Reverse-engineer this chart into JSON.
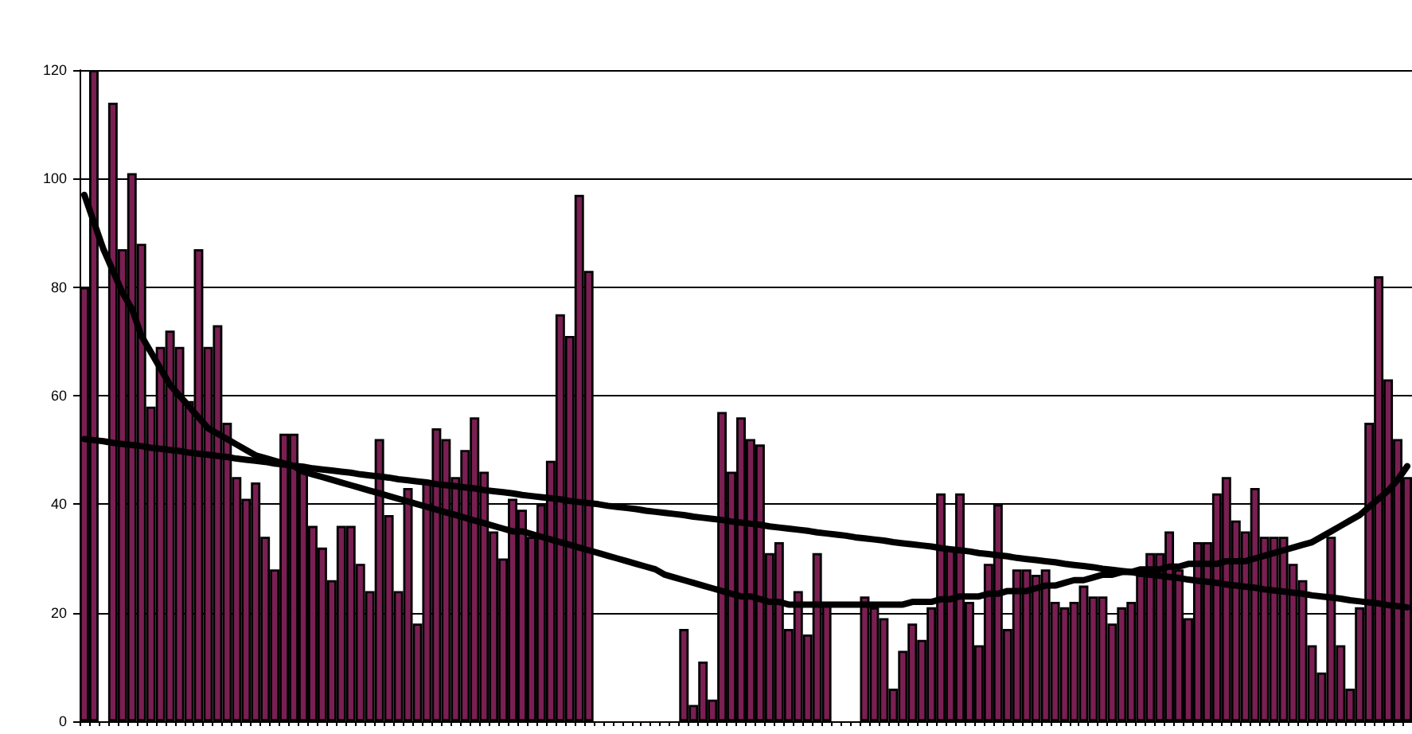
{
  "chart_data": {
    "type": "bar",
    "categories": [
      null,
      null,
      null,
      null,
      null,
      null,
      null,
      null,
      null,
      null,
      null,
      null,
      null,
      null,
      null,
      null,
      null,
      null,
      null,
      null,
      null,
      null,
      null,
      null,
      null,
      null,
      null,
      null,
      null,
      null,
      null,
      null,
      null,
      null,
      null,
      null,
      null,
      null,
      null,
      null,
      null,
      null,
      null,
      null,
      null,
      null,
      null,
      null,
      null,
      null,
      null,
      null,
      null,
      null,
      null,
      null,
      null,
      null,
      null,
      null,
      null,
      null,
      null,
      null,
      null,
      null,
      null,
      null,
      null,
      null,
      null,
      null,
      null,
      null,
      null,
      null,
      null,
      null,
      null,
      null,
      null,
      null,
      null,
      null,
      null,
      null,
      null,
      null,
      null,
      null,
      null,
      null,
      null,
      null,
      null,
      null,
      null,
      null,
      null,
      null,
      null,
      null,
      null,
      null,
      null,
      null,
      null,
      null,
      null,
      null,
      null,
      null,
      null,
      null,
      null,
      null,
      null,
      null,
      null,
      null,
      null,
      null,
      null,
      null,
      null,
      null,
      null,
      null,
      null,
      null,
      null,
      null,
      null,
      null,
      null,
      null,
      null,
      null,
      null,
      null
    ],
    "series": [
      {
        "color": "#7a1f52",
        "values": [
          80,
          120,
          null,
          114,
          87,
          101,
          88,
          58,
          69,
          72,
          69,
          59,
          87,
          69,
          73,
          55,
          45,
          41,
          44,
          34,
          28,
          53,
          53,
          47,
          36,
          32,
          26,
          36,
          36,
          29,
          24,
          52,
          38,
          24,
          43,
          18,
          44,
          54,
          52,
          45,
          50,
          56,
          46,
          35,
          30,
          41,
          39,
          34,
          40,
          48,
          75,
          71,
          97,
          83,
          null,
          null,
          null,
          null,
          null,
          null,
          null,
          null,
          null,
          17,
          3,
          11,
          4,
          57,
          46,
          56,
          52,
          51,
          31,
          33,
          17,
          24,
          16,
          31,
          22,
          null,
          null,
          null,
          23,
          21,
          19,
          6,
          13,
          18,
          15,
          21,
          42,
          32,
          42,
          22,
          14,
          29,
          40,
          17,
          28,
          28,
          27,
          28,
          22,
          21,
          22,
          25,
          23,
          23,
          18,
          21,
          22,
          27,
          31,
          31,
          35,
          28,
          19,
          33,
          33,
          42,
          45,
          37,
          35,
          43,
          34,
          34,
          34,
          29,
          26,
          14,
          9,
          34,
          14,
          6,
          21,
          55,
          82,
          63,
          52,
          45
        ]
      },
      {
        "type": "line",
        "color": "#000000",
        "values": [
          52.0,
          51.8,
          51.6,
          51.3,
          51.1,
          50.9,
          50.7,
          50.4,
          50.2,
          50.0,
          49.8,
          49.5,
          49.3,
          49.1,
          48.9,
          48.7,
          48.4,
          48.2,
          48.0,
          47.8,
          47.5,
          47.3,
          47.1,
          46.9,
          46.6,
          46.4,
          46.2,
          46.0,
          45.8,
          45.5,
          45.3,
          45.1,
          44.9,
          44.6,
          44.4,
          44.2,
          44.0,
          43.7,
          43.5,
          43.3,
          43.1,
          42.9,
          42.6,
          42.4,
          42.2,
          42.0,
          41.7,
          41.5,
          41.3,
          41.1,
          40.9,
          40.6,
          40.4,
          40.2,
          40.0,
          39.7,
          39.5,
          39.3,
          39.1,
          38.8,
          38.6,
          38.4,
          38.2,
          38.0,
          37.7,
          37.5,
          37.3,
          37.1,
          36.8,
          36.6,
          36.4,
          36.2,
          35.9,
          35.7,
          35.5,
          35.3,
          35.1,
          34.8,
          34.6,
          34.4,
          34.2,
          33.9,
          33.7,
          33.5,
          33.3,
          33.0,
          32.8,
          32.6,
          32.4,
          32.2,
          31.9,
          31.7,
          31.5,
          31.3,
          31.0,
          30.8,
          30.6,
          30.4,
          30.1,
          29.9,
          29.7,
          29.5,
          29.3,
          29.0,
          28.8,
          28.6,
          28.4,
          28.1,
          27.9,
          27.7,
          27.5,
          27.2,
          27.0,
          26.8,
          26.6,
          26.4,
          26.1,
          25.9,
          25.7,
          25.5,
          25.2,
          25.0,
          24.8,
          24.6,
          24.3,
          24.1,
          23.9,
          23.7,
          23.5,
          23.2,
          23.0,
          22.8,
          22.6,
          22.3,
          22.1,
          21.9,
          21.7,
          21.4,
          21.2,
          21.0
        ]
      },
      {
        "type": "line",
        "color": "#000000",
        "values": [
          97,
          92,
          87,
          83,
          79,
          76,
          71,
          68,
          65,
          62,
          60,
          58,
          56,
          54,
          53,
          52,
          51,
          50,
          49,
          48.5,
          48,
          47.5,
          47,
          46,
          45.5,
          45,
          44.5,
          44,
          43.5,
          43,
          42.5,
          42,
          41.5,
          41,
          40.5,
          40,
          39.5,
          39,
          38.5,
          38,
          37.5,
          37,
          36.5,
          36,
          35.5,
          35,
          35,
          34.5,
          34,
          33.5,
          33,
          32.5,
          32,
          31.5,
          31,
          30.5,
          30,
          29.5,
          29,
          28.5,
          28,
          27,
          26.5,
          26,
          25.5,
          25,
          24.5,
          24,
          23.5,
          23,
          23,
          22.5,
          22,
          22,
          21.5,
          21.5,
          21.5,
          21.5,
          21.5,
          21.5,
          21.5,
          21.5,
          21.5,
          21.5,
          21.5,
          21.5,
          21.5,
          22,
          22,
          22,
          22.5,
          22.5,
          23,
          23,
          23,
          23.5,
          23.5,
          24,
          24,
          24,
          24.5,
          25,
          25,
          25.5,
          26,
          26,
          26.5,
          27,
          27,
          27.5,
          27.5,
          28,
          28,
          28,
          28.5,
          28.5,
          29,
          29,
          29,
          29,
          29.5,
          29.5,
          29.5,
          30,
          30.5,
          31,
          31.5,
          32,
          32.5,
          33,
          34,
          35,
          36,
          37,
          38,
          39.5,
          41,
          42.5,
          44.5,
          47
        ]
      }
    ],
    "ylim": [
      0,
      120
    ],
    "yticks": [
      0,
      20,
      40,
      60,
      80,
      100,
      120
    ],
    "grid": "y",
    "marker": "none",
    "line_style": "solid"
  }
}
